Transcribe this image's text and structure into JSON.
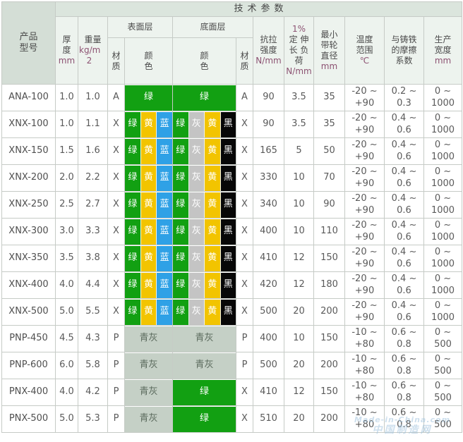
{
  "header": {
    "tech_params": "技术参数",
    "product_model": "产品 型号",
    "thickness": {
      "zh": "厚度",
      "unit": "mm"
    },
    "weight": {
      "zh": "重量",
      "unit": "kg/m 2"
    },
    "surface_layer": "表面层",
    "bottom_layer": "底面层",
    "material": "材质",
    "color": "颜 色",
    "tensile": {
      "zh": "抗拉 强度",
      "unit": "N/mm"
    },
    "elongation": {
      "pre": "1%",
      "zh": "定 伸长 负荷",
      "unit": "N/mm"
    },
    "pulley": {
      "zh": "最小 带轮 直径",
      "unit": "mm"
    },
    "temp": {
      "zh": "温度 范围",
      "unit": "℃"
    },
    "friction": {
      "zh": "与铸铁 的摩擦 系数",
      "unit": ""
    },
    "width": {
      "zh": "生产 宽度",
      "unit": "mm"
    }
  },
  "palette": {
    "绿": "#12A012",
    "黄": "#F2C400",
    "蓝": "#2FA1E6",
    "灰": "#C4C4C4",
    "黑": "#070707",
    "青灰": "#C5D0C6"
  },
  "rows": [
    {
      "model": "ANA-100",
      "thickness": "1.0",
      "weight": "1.0",
      "surface_material": "A",
      "surface_colors": [
        "绿"
      ],
      "bottom_colors": [
        "绿"
      ],
      "bottom_material": "A",
      "tensile": "90",
      "elongation": "3.5",
      "pulley": "35",
      "temp": [
        "-20 ~",
        "+90"
      ],
      "friction": [
        "0.2 ~",
        "0.3"
      ],
      "width": [
        "0 ~",
        "1000"
      ]
    },
    {
      "model": "XNX-100",
      "thickness": "1.0",
      "weight": "1.1",
      "surface_material": "X",
      "surface_colors": [
        "绿",
        "黄",
        "蓝"
      ],
      "bottom_colors": [
        "绿",
        "灰",
        "黄",
        "黑"
      ],
      "bottom_material": "X",
      "tensile": "90",
      "elongation": "3.5",
      "pulley": "35",
      "temp": [
        "-20 ~",
        "+90"
      ],
      "friction": [
        "0.4 ~",
        "0.6"
      ],
      "width": [
        "0 ~",
        "1000"
      ]
    },
    {
      "model": "XNX-150",
      "thickness": "1.5",
      "weight": "1.6",
      "surface_material": "X",
      "surface_colors": [
        "绿",
        "黄",
        "蓝"
      ],
      "bottom_colors": [
        "绿",
        "灰",
        "黄",
        "黑"
      ],
      "bottom_material": "X",
      "tensile": "165",
      "elongation": "5",
      "pulley": "50",
      "temp": [
        "-20 ~",
        "+90"
      ],
      "friction": [
        "0.4 ~",
        "0.6"
      ],
      "width": [
        "0 ~",
        "1000"
      ]
    },
    {
      "model": "XNX-200",
      "thickness": "2.0",
      "weight": "2.2",
      "surface_material": "X",
      "surface_colors": [
        "绿",
        "黄",
        "蓝"
      ],
      "bottom_colors": [
        "绿",
        "灰",
        "黄",
        "黑"
      ],
      "bottom_material": "X",
      "tensile": "330",
      "elongation": "10",
      "pulley": "70",
      "temp": [
        "-20 ~",
        "+90"
      ],
      "friction": [
        "0.4 ~",
        "0.6"
      ],
      "width": [
        "0 ~",
        "1000"
      ]
    },
    {
      "model": "XNX-250",
      "thickness": "2.5",
      "weight": "2.7",
      "surface_material": "X",
      "surface_colors": [
        "绿",
        "黄",
        "蓝"
      ],
      "bottom_colors": [
        "绿",
        "灰",
        "黄",
        "黑"
      ],
      "bottom_material": "X",
      "tensile": "340",
      "elongation": "10",
      "pulley": "90",
      "temp": [
        "-20 ~",
        "+90"
      ],
      "friction": [
        "0.4 ~",
        "0.6"
      ],
      "width": [
        "0 ~",
        "1000"
      ]
    },
    {
      "model": "XNX-300",
      "thickness": "3.0",
      "weight": "3.3",
      "surface_material": "X",
      "surface_colors": [
        "绿",
        "黄",
        "蓝"
      ],
      "bottom_colors": [
        "绿",
        "灰",
        "黄",
        "黑"
      ],
      "bottom_material": "X",
      "tensile": "400",
      "elongation": "10",
      "pulley": "110",
      "temp": [
        "-20 ~",
        "+90"
      ],
      "friction": [
        "0.4 ~",
        "0.6"
      ],
      "width": [
        "0 ~",
        "1000"
      ]
    },
    {
      "model": "XNX-350",
      "thickness": "3.5",
      "weight": "3.8",
      "surface_material": "X",
      "surface_colors": [
        "绿",
        "黄",
        "蓝"
      ],
      "bottom_colors": [
        "绿",
        "灰",
        "黄",
        "黑"
      ],
      "bottom_material": "X",
      "tensile": "410",
      "elongation": "12",
      "pulley": "150",
      "temp": [
        "-20 ~",
        "+90"
      ],
      "friction": [
        "0.4 ~",
        "0.6"
      ],
      "width": [
        "0 ~",
        "1000"
      ]
    },
    {
      "model": "XNX-400",
      "thickness": "4.0",
      "weight": "4.4",
      "surface_material": "X",
      "surface_colors": [
        "绿",
        "黄",
        "蓝"
      ],
      "bottom_colors": [
        "绿",
        "灰",
        "黄",
        "黑"
      ],
      "bottom_material": "X",
      "tensile": "420",
      "elongation": "12",
      "pulley": "180",
      "temp": [
        "-20 ~",
        "+90"
      ],
      "friction": [
        "0.4 ~",
        "0.6"
      ],
      "width": [
        "0 ~",
        "1000"
      ]
    },
    {
      "model": "XNX-500",
      "thickness": "5.0",
      "weight": "5.5",
      "surface_material": "X",
      "surface_colors": [
        "绿",
        "黄",
        "蓝"
      ],
      "bottom_colors": [
        "绿",
        "灰",
        "黄",
        "黑"
      ],
      "bottom_material": "X",
      "tensile": "500",
      "elongation": "20",
      "pulley": "200",
      "temp": [
        "-20 ~",
        "+90"
      ],
      "friction": [
        "0.4 ~",
        "0.6"
      ],
      "width": [
        "0 ~",
        "1000"
      ]
    },
    {
      "model": "PNP-450",
      "thickness": "4.5",
      "weight": "4.3",
      "surface_material": "P",
      "surface_colors": [
        "青灰"
      ],
      "bottom_colors": [
        "青灰"
      ],
      "bottom_material": "P",
      "tensile": "400",
      "elongation": "10",
      "pulley": "150",
      "temp": [
        "-10 ~",
        "+80"
      ],
      "friction": [
        "0.6 ~",
        "0.8"
      ],
      "width": [
        "0 ~",
        "500"
      ]
    },
    {
      "model": "PNP-600",
      "thickness": "6.0",
      "weight": "5.8",
      "surface_material": "P",
      "surface_colors": [
        "青灰"
      ],
      "bottom_colors": [
        "青灰"
      ],
      "bottom_material": "P",
      "tensile": "500",
      "elongation": "20",
      "pulley": "200",
      "temp": [
        "-10 ~",
        "+80"
      ],
      "friction": [
        "0.6 ~",
        "0.8"
      ],
      "width": [
        "0 ~",
        "500"
      ]
    },
    {
      "model": "PNX-400",
      "thickness": "4.0",
      "weight": "4.2",
      "surface_material": "P",
      "surface_colors": [
        "青灰"
      ],
      "bottom_colors": [
        "绿"
      ],
      "bottom_material": "X",
      "tensile": "410",
      "elongation": "12",
      "pulley": "150",
      "temp": [
        "-10 ~",
        "+80"
      ],
      "friction": [
        "0.6 ~",
        "0.8"
      ],
      "width": [
        "0 ~",
        "500"
      ]
    },
    {
      "model": "PNX-500",
      "thickness": "5.0",
      "weight": "5.3",
      "surface_material": "P",
      "surface_colors": [
        "青灰"
      ],
      "bottom_colors": [
        "绿"
      ],
      "bottom_material": "X",
      "tensile": "510",
      "elongation": "20",
      "pulley": "200",
      "temp": [
        "-10 ~",
        "+80"
      ],
      "friction": [
        "0.6 ~",
        "0.8"
      ],
      "width": [
        "0 ~",
        "500"
      ]
    }
  ],
  "watermark": {
    "line1": "Made-in-China.com",
    "line2": "中国制造网"
  }
}
